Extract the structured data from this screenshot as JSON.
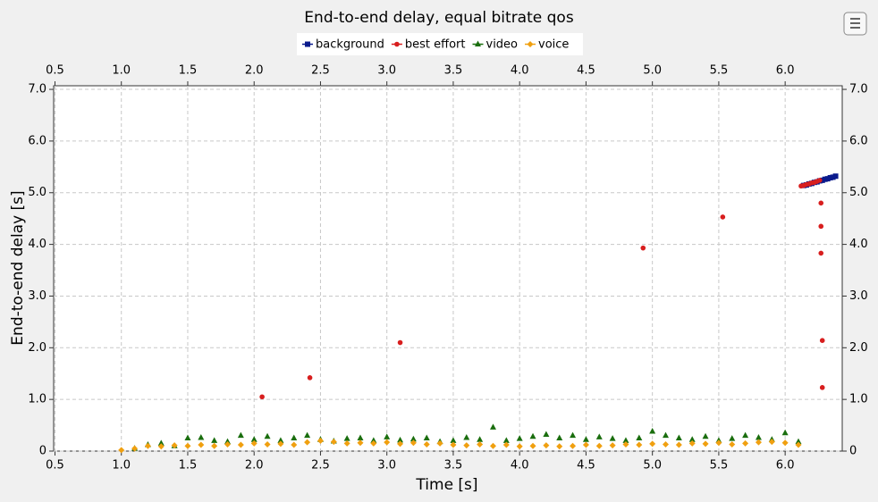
{
  "chart_data": {
    "type": "scatter",
    "title": "End-to-end delay, equal bitrate qos",
    "x_label": "Time [s]",
    "y_label": "End-to-end delay [s]",
    "xlim": [
      0.49,
      6.43
    ],
    "ylim": [
      0,
      7.07
    ],
    "xticks": [
      0.5,
      {
        "value": 1,
        "label": "1.0"
      },
      1.5,
      {
        "value": 2,
        "label": "2.0"
      },
      2.5,
      {
        "value": 3,
        "label": "3.0"
      },
      3.5,
      {
        "value": 4,
        "label": "4.0"
      },
      4.5,
      {
        "value": 5,
        "label": "5.0"
      },
      5.5,
      {
        "value": 6,
        "label": "6.0"
      }
    ],
    "yticks": [
      0,
      {
        "value": 1,
        "label": "1.0"
      },
      {
        "value": 2,
        "label": "2.0"
      },
      {
        "value": 3,
        "label": "3.0"
      },
      {
        "value": 4,
        "label": "4.0"
      },
      {
        "value": 5,
        "label": "5.0"
      },
      {
        "value": 6,
        "label": "6.0"
      },
      {
        "value": 7,
        "label": "7.0"
      }
    ],
    "grid": true,
    "legend": "top",
    "series": [
      {
        "name": "background",
        "color": "#0a1a8c",
        "marker": "square",
        "x": [
          6.14,
          6.16,
          6.18,
          6.2,
          6.22,
          6.24,
          6.26,
          6.28,
          6.3,
          6.32,
          6.34,
          6.36,
          6.38
        ],
        "values": [
          5.14,
          5.15,
          5.17,
          5.18,
          5.2,
          5.21,
          5.23,
          5.24,
          5.26,
          5.27,
          5.29,
          5.3,
          5.32
        ]
      },
      {
        "name": "best effort",
        "color": "#d81e1e",
        "marker": "circle",
        "x": [
          2.06,
          2.42,
          3.1,
          4.93,
          5.53,
          6.27,
          6.27,
          6.27,
          6.28,
          6.28,
          6.12,
          6.14,
          6.16,
          6.18,
          6.2,
          6.22,
          6.24,
          6.26
        ],
        "values": [
          1.05,
          1.42,
          2.1,
          3.93,
          4.53,
          4.8,
          4.35,
          3.83,
          2.14,
          1.23,
          5.13,
          5.14,
          5.16,
          5.17,
          5.19,
          5.2,
          5.22,
          5.24
        ]
      },
      {
        "name": "video",
        "color": "#1a6e0e",
        "marker": "triangle",
        "x": [
          1.1,
          1.2,
          1.3,
          1.4,
          1.5,
          1.6,
          1.7,
          1.8,
          1.9,
          2.0,
          2.1,
          2.2,
          2.3,
          2.4,
          2.5,
          2.6,
          2.7,
          2.8,
          2.9,
          3.0,
          3.1,
          3.2,
          3.3,
          3.4,
          3.5,
          3.6,
          3.7,
          3.8,
          3.9,
          4.0,
          4.1,
          4.2,
          4.3,
          4.4,
          4.5,
          4.6,
          4.7,
          4.8,
          4.9,
          5.0,
          5.1,
          5.2,
          5.3,
          5.4,
          5.5,
          5.6,
          5.7,
          5.8,
          5.9,
          6.0,
          6.1
        ],
        "values": [
          0.05,
          0.12,
          0.15,
          0.1,
          0.25,
          0.26,
          0.2,
          0.18,
          0.3,
          0.22,
          0.28,
          0.2,
          0.25,
          0.3,
          0.22,
          0.19,
          0.24,
          0.25,
          0.2,
          0.27,
          0.21,
          0.23,
          0.25,
          0.18,
          0.2,
          0.26,
          0.22,
          0.46,
          0.2,
          0.24,
          0.28,
          0.32,
          0.25,
          0.3,
          0.22,
          0.27,
          0.24,
          0.2,
          0.25,
          0.38,
          0.3,
          0.25,
          0.22,
          0.28,
          0.2,
          0.24,
          0.3,
          0.26,
          0.22,
          0.35,
          0.18
        ]
      },
      {
        "name": "voice",
        "color": "#f0a010",
        "marker": "diamond",
        "x": [
          1.0,
          1.1,
          1.2,
          1.3,
          1.4,
          1.5,
          1.6,
          1.7,
          1.8,
          1.9,
          2.0,
          2.1,
          2.2,
          2.3,
          2.4,
          2.5,
          2.6,
          2.7,
          2.8,
          2.9,
          3.0,
          3.1,
          3.2,
          3.3,
          3.4,
          3.5,
          3.6,
          3.7,
          3.8,
          3.9,
          4.0,
          4.1,
          4.2,
          4.3,
          4.4,
          4.5,
          4.6,
          4.7,
          4.8,
          4.9,
          5.0,
          5.1,
          5.2,
          5.3,
          5.4,
          5.5,
          5.6,
          5.7,
          5.8,
          5.9,
          6.0,
          6.1
        ],
        "values": [
          0.02,
          0.05,
          0.1,
          0.09,
          0.11,
          0.1,
          0.12,
          0.1,
          0.13,
          0.12,
          0.15,
          0.13,
          0.14,
          0.12,
          0.17,
          0.2,
          0.18,
          0.15,
          0.16,
          0.15,
          0.17,
          0.14,
          0.16,
          0.13,
          0.15,
          0.12,
          0.11,
          0.13,
          0.1,
          0.12,
          0.09,
          0.1,
          0.11,
          0.09,
          0.1,
          0.12,
          0.1,
          0.11,
          0.13,
          0.12,
          0.14,
          0.13,
          0.12,
          0.15,
          0.14,
          0.16,
          0.13,
          0.15,
          0.17,
          0.18,
          0.16,
          0.12
        ]
      }
    ]
  }
}
